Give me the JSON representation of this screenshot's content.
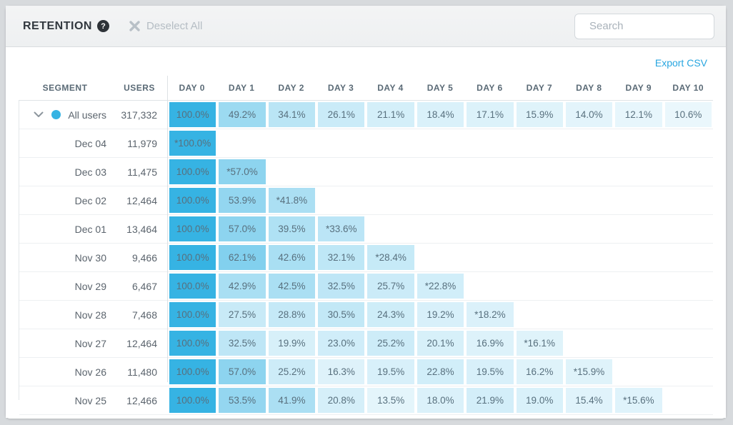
{
  "topbar": {
    "title": "RETENTION",
    "help_glyph": "?",
    "deselect_all": "Deselect All",
    "search_placeholder": "Search"
  },
  "card": {
    "export_csv": "Export CSV"
  },
  "colors": {
    "accent_blue": "#36b3e3",
    "accent_blue_rgb": "54,179,227",
    "link_blue": "#28a6e0"
  },
  "table": {
    "headers": {
      "segment": "SEGMENT",
      "users": "USERS",
      "days": [
        "DAY 0",
        "DAY 1",
        "DAY 2",
        "DAY 3",
        "DAY 4",
        "DAY 5",
        "DAY 6",
        "DAY 7",
        "DAY 8",
        "DAY 9",
        "DAY 10"
      ]
    },
    "rows": [
      {
        "segment": "All users",
        "users": "317,332",
        "expandable": true,
        "values": [
          "100.0%",
          "49.2%",
          "34.1%",
          "26.1%",
          "21.1%",
          "18.4%",
          "17.1%",
          "15.9%",
          "14.0%",
          "12.1%",
          "10.6%"
        ]
      },
      {
        "segment": "Dec 04",
        "users": "11,979",
        "expandable": false,
        "values": [
          "*100.0%"
        ]
      },
      {
        "segment": "Dec 03",
        "users": "11,475",
        "expandable": false,
        "values": [
          "100.0%",
          "*57.0%"
        ]
      },
      {
        "segment": "Dec 02",
        "users": "12,464",
        "expandable": false,
        "values": [
          "100.0%",
          "53.9%",
          "*41.8%"
        ]
      },
      {
        "segment": "Dec 01",
        "users": "13,464",
        "expandable": false,
        "values": [
          "100.0%",
          "57.0%",
          "39.5%",
          "*33.6%"
        ]
      },
      {
        "segment": "Nov 30",
        "users": "9,466",
        "expandable": false,
        "values": [
          "100.0%",
          "62.1%",
          "42.6%",
          "32.1%",
          "*28.4%"
        ]
      },
      {
        "segment": "Nov 29",
        "users": "6,467",
        "expandable": false,
        "values": [
          "100.0%",
          "42.9%",
          "42.5%",
          "32.5%",
          "25.7%",
          "*22.8%"
        ]
      },
      {
        "segment": "Nov 28",
        "users": "7,468",
        "expandable": false,
        "values": [
          "100.0%",
          "27.5%",
          "28.8%",
          "30.5%",
          "24.3%",
          "19.2%",
          "*18.2%"
        ]
      },
      {
        "segment": "Nov 27",
        "users": "12,464",
        "expandable": false,
        "values": [
          "100.0%",
          "32.5%",
          "19.9%",
          "23.0%",
          "25.2%",
          "20.1%",
          "16.9%",
          "*16.1%"
        ]
      },
      {
        "segment": "Nov 26",
        "users": "11,480",
        "expandable": false,
        "values": [
          "100.0%",
          "57.0%",
          "25.2%",
          "16.3%",
          "19.5%",
          "22.8%",
          "19.5%",
          "16.2%",
          "*15.9%"
        ]
      },
      {
        "segment": "Nov 25",
        "users": "12,466",
        "expandable": false,
        "values": [
          "100.0%",
          "53.5%",
          "41.9%",
          "20.8%",
          "13.5%",
          "18.0%",
          "21.9%",
          "19.0%",
          "15.4%",
          "*15.6%"
        ]
      }
    ]
  }
}
